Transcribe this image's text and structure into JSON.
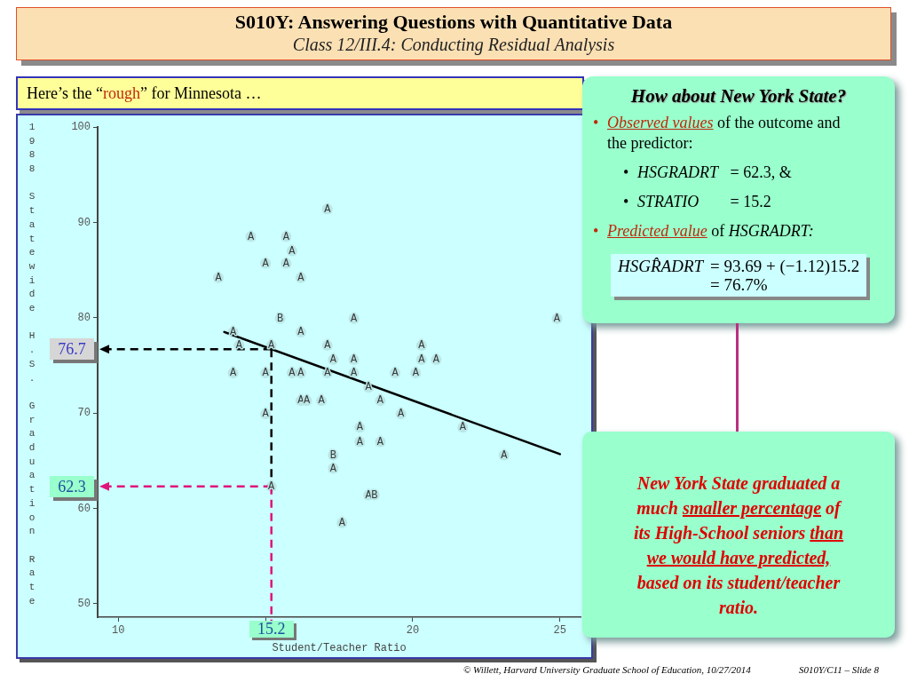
{
  "chart_data": {
    "type": "scatter",
    "title": "S010Y: Answering Questions with Quantitative Data",
    "subtitle": "Class 12/III.4: Conducting Residual Analysis",
    "xlabel": "Student/Teacher Ratio",
    "ylabel": "1988 Statewide H.S. Graduation Rate",
    "xlim": [
      9.3,
      25.7
    ],
    "xticks": [
      10,
      {
        "value": 15,
        "label": null
      },
      20,
      25
    ],
    "ylim": [
      48.6,
      100
    ],
    "yticks": [
      50,
      60,
      70,
      80,
      90,
      100
    ],
    "series": [
      {
        "type": "scatter",
        "color": "#3a3a3a",
        "x": [
          17.1,
          14.5,
          15.7,
          15.9,
          15.0,
          15.7,
          13.4,
          16.2,
          15.5,
          18.0,
          24.9,
          13.9,
          16.2,
          14.1,
          15.2,
          17.1,
          20.3,
          17.3,
          18.0,
          20.3,
          20.8,
          13.9,
          15.0,
          15.9,
          16.2,
          17.1,
          18.0,
          19.4,
          20.1,
          18.5,
          16.2,
          16.4,
          16.9,
          18.9,
          15.0,
          19.6,
          18.2,
          21.7,
          18.2,
          18.9,
          17.3,
          23.1,
          17.3,
          15.2,
          18.5,
          18.7,
          17.6
        ],
        "values": [
          91.4,
          88.5,
          88.5,
          87.0,
          85.7,
          85.7,
          84.2,
          84.2,
          79.9,
          79.9,
          79.9,
          78.5,
          78.5,
          77.1,
          77.1,
          77.1,
          77.1,
          75.6,
          75.6,
          75.6,
          75.6,
          74.2,
          74.2,
          74.2,
          74.2,
          74.2,
          74.2,
          74.2,
          74.2,
          72.7,
          71.3,
          71.3,
          71.3,
          71.3,
          69.9,
          69.9,
          68.5,
          68.5,
          67.0,
          67.0,
          65.6,
          65.6,
          64.2,
          62.3,
          61.4,
          61.4,
          58.5
        ],
        "value_labels": [
          "A",
          "A",
          "A",
          "A",
          "A",
          "A",
          "A",
          "A",
          "B",
          "A",
          "A",
          "A",
          "A",
          "A",
          "A",
          "A",
          "A",
          "A",
          "A",
          "A",
          "A",
          "A",
          "A",
          "A",
          "A",
          "A",
          "A",
          "A",
          "A",
          "A",
          "A",
          "A",
          "A",
          "A",
          "A",
          "A",
          "A",
          "A",
          "A",
          "A",
          "B",
          "A",
          "A",
          "A",
          "A",
          "B",
          "A"
        ]
      },
      {
        "type": "line",
        "color": "#000000",
        "marker": "none",
        "x": [
          13.6,
          25.0
        ],
        "values": [
          78.5,
          65.7
        ]
      }
    ],
    "ref_lines": [
      {
        "axis": "y",
        "value": 76.7,
        "label": "76.7",
        "color": "#000000",
        "line_style": "dashed"
      },
      {
        "axis": "y",
        "value": 62.3,
        "label": "62.3",
        "color": "#e0147c",
        "line_style": "dashed"
      },
      {
        "axis": "x",
        "value": 15.2,
        "label": "15.2",
        "color": "#e0147c",
        "line_style": "dashed"
      }
    ],
    "annotations": [
      "Here’s the “",
      "rough",
      "” for Minnesota …",
      "How about New York State?",
      "•",
      "Observed values",
      "of the outcome and",
      "the predictor:",
      "•",
      "HSGRADRT",
      "= 62.3, &",
      "•",
      "STRATIO",
      "= 15.2",
      "•",
      "Predicted value",
      "of",
      "HSGRADRT:",
      "HSGR̂ADRT",
      "= 93.69 + (−1.12)15.2",
      "= 76.7%",
      "New York State graduated a",
      "much",
      "smaller percentage",
      "of",
      "its High-School seniors",
      "than",
      "we would have predicted,",
      "based on its student/teacher",
      "ratio.",
      "© Willett, Harvard University Graduate School of Education, 10/27/2014",
      "S010Y/C11 – Slide 8"
    ]
  }
}
